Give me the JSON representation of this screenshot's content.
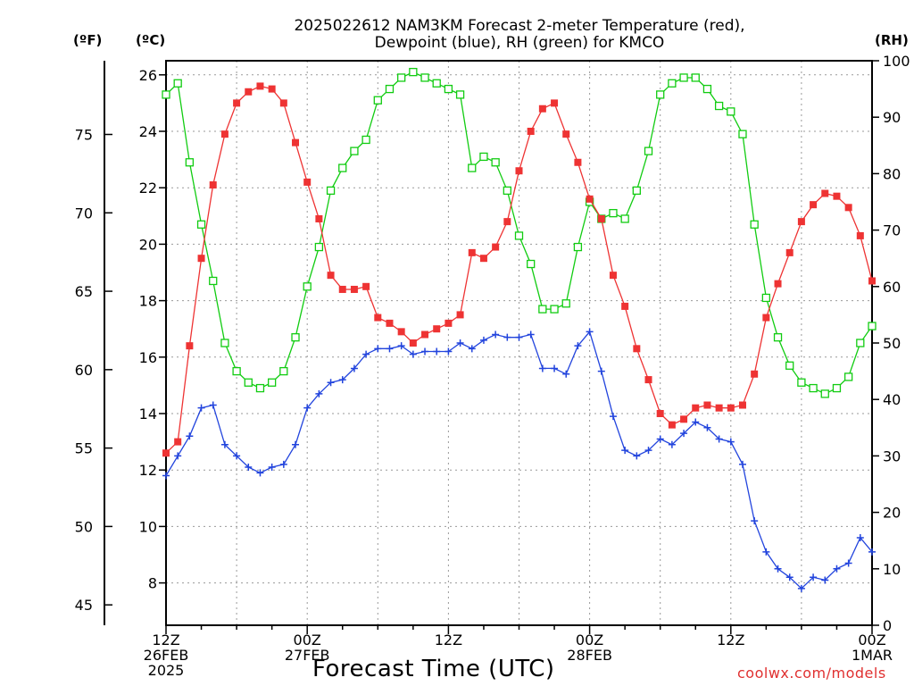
{
  "header": {
    "title_line1": "2025022612 NAM3KM Forecast 2-meter Temperature (red),",
    "title_line2": "Dewpoint (blue), RH (green) for KMCO",
    "unit_f": "(ºF)",
    "unit_c": "(ºC)",
    "unit_rh": "(RH)"
  },
  "footer": {
    "xlabel": "Forecast Time (UTC)",
    "credit": "coolwx.com/models"
  },
  "colors": {
    "temperature": "#ee3333",
    "dewpoint": "#2244dd",
    "rh": "#11cc11",
    "grid": "#999999"
  },
  "chart_data": {
    "type": "line",
    "title": "2025022612 NAM3KM Forecast 2-meter Temperature (red), Dewpoint (blue), RH (green) for KMCO",
    "xlabel": "Forecast Time (UTC)",
    "x_start_hour": 0,
    "x_range_hours": [
      0,
      60
    ],
    "x_ticks": [
      {
        "hour": 0,
        "lines": [
          "12Z",
          "26FEB",
          "2025"
        ]
      },
      {
        "hour": 12,
        "lines": [
          "00Z",
          "27FEB"
        ]
      },
      {
        "hour": 24,
        "lines": [
          "12Z"
        ]
      },
      {
        "hour": 36,
        "lines": [
          "00Z",
          "28FEB"
        ]
      },
      {
        "hour": 48,
        "lines": [
          "12Z"
        ]
      },
      {
        "hour": 60,
        "lines": [
          "00Z",
          "1MAR"
        ]
      }
    ],
    "y_left_c": {
      "label": "(ºC)",
      "range": [
        6.5,
        26.5
      ],
      "ticks": [
        8,
        10,
        12,
        14,
        16,
        18,
        20,
        22,
        24,
        26
      ]
    },
    "y_left_f": {
      "label": "(ºF)",
      "ticks": [
        45,
        50,
        55,
        60,
        65,
        70,
        75
      ]
    },
    "y_right_rh": {
      "label": "(RH)",
      "range": [
        0,
        100
      ],
      "ticks": [
        0,
        10,
        20,
        30,
        40,
        50,
        60,
        70,
        80,
        90,
        100
      ]
    },
    "grid": true,
    "series": [
      {
        "name": "Temperature",
        "axis": "c",
        "marker": "filled-square",
        "values": [
          12.6,
          13.0,
          16.4,
          19.5,
          22.1,
          23.9,
          25.0,
          25.4,
          25.6,
          25.5,
          25.0,
          23.6,
          22.2,
          20.9,
          18.9,
          18.4,
          18.4,
          18.5,
          17.4,
          17.2,
          16.9,
          16.5,
          16.8,
          17.0,
          17.2,
          17.5,
          19.7,
          19.5,
          19.9,
          20.8,
          22.6,
          24.0,
          24.8,
          25.0,
          23.9,
          22.9,
          21.6,
          20.9,
          18.9,
          17.8,
          16.3,
          15.2,
          14.0,
          13.6,
          13.8,
          14.2,
          14.3,
          14.2,
          14.2,
          14.3,
          15.4,
          17.4,
          18.6,
          19.7,
          20.8,
          21.4,
          21.8,
          21.7,
          21.3,
          20.3,
          18.7
        ]
      },
      {
        "name": "Dewpoint",
        "axis": "c",
        "marker": "plus",
        "values": [
          11.8,
          12.5,
          13.2,
          14.2,
          14.3,
          12.9,
          12.5,
          12.1,
          11.9,
          12.1,
          12.2,
          12.9,
          14.2,
          14.7,
          15.1,
          15.2,
          15.6,
          16.1,
          16.3,
          16.3,
          16.4,
          16.1,
          16.2,
          16.2,
          16.2,
          16.5,
          16.3,
          16.6,
          16.8,
          16.7,
          16.7,
          16.8,
          15.6,
          15.6,
          15.4,
          16.4,
          16.9,
          15.5,
          13.9,
          12.7,
          12.5,
          12.7,
          13.1,
          12.9,
          13.3,
          13.7,
          13.5,
          13.1,
          13.0,
          12.2,
          10.2,
          9.1,
          8.5,
          8.2,
          7.8,
          8.2,
          8.1,
          8.5,
          8.7,
          9.6,
          9.1
        ]
      },
      {
        "name": "RH",
        "axis": "rh",
        "marker": "open-square",
        "values": [
          94,
          96,
          82,
          71,
          61,
          50,
          45,
          43,
          42,
          43,
          45,
          51,
          60,
          67,
          77,
          81,
          84,
          86,
          93,
          95,
          97,
          98,
          97,
          96,
          95,
          94,
          81,
          83,
          82,
          77,
          69,
          64,
          56,
          56,
          57,
          67,
          75,
          72,
          73,
          72,
          77,
          84,
          94,
          96,
          97,
          97,
          95,
          92,
          91,
          87,
          71,
          58,
          51,
          46,
          43,
          42,
          41,
          42,
          44,
          50,
          53
        ]
      }
    ]
  }
}
